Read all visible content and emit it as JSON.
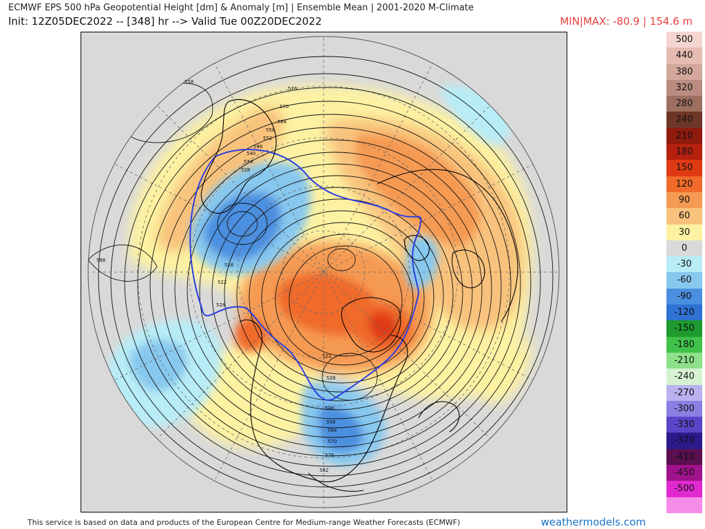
{
  "header": {
    "title": "ECMWF EPS 500 hPa Geopotential Height [dm] & Anomaly [m] | Ensemble Mean | 2001-2020 M-Climate",
    "init_valid": "Init: 12Z05DEC2022 -- [348] hr --> Valid Tue 00Z20DEC2022",
    "minmax": "MIN|MAX: -80.9 | 154.6 m"
  },
  "legend": {
    "entries": [
      {
        "label": "500",
        "color": "#f5d5d0"
      },
      {
        "label": "440",
        "color": "#e6bcb2"
      },
      {
        "label": "380",
        "color": "#d3a79c"
      },
      {
        "label": "320",
        "color": "#bb8c80"
      },
      {
        "label": "280",
        "color": "#9d6f61"
      },
      {
        "label": "240",
        "color": "#6e3626"
      },
      {
        "label": "210",
        "color": "#8f1a0d"
      },
      {
        "label": "180",
        "color": "#b5200f"
      },
      {
        "label": "150",
        "color": "#e03a14"
      },
      {
        "label": "120",
        "color": "#f06a2a"
      },
      {
        "label": "90",
        "color": "#f59a52"
      },
      {
        "label": "60",
        "color": "#f8c27c"
      },
      {
        "label": "30",
        "color": "#fdf2a2"
      },
      {
        "label": "0",
        "color": "#d9d9d9"
      },
      {
        "label": "-30",
        "color": "#b8ecf6"
      },
      {
        "label": "-60",
        "color": "#88c8ee"
      },
      {
        "label": "-90",
        "color": "#4b8fe0"
      },
      {
        "label": "-120",
        "color": "#2f72d4"
      },
      {
        "label": "-150",
        "color": "#1e9a2e"
      },
      {
        "label": "-180",
        "color": "#40c24a"
      },
      {
        "label": "-210",
        "color": "#8ee08a"
      },
      {
        "label": "-240",
        "color": "#d6f2d2"
      },
      {
        "label": "-270",
        "color": "#b9b2ef"
      },
      {
        "label": "-300",
        "color": "#8a7fe2"
      },
      {
        "label": "-330",
        "color": "#5a45c8"
      },
      {
        "label": "-370",
        "color": "#2b1a8a"
      },
      {
        "label": "-410",
        "color": "#5a0f50"
      },
      {
        "label": "-450",
        "color": "#a0128c"
      },
      {
        "label": "-500",
        "color": "#e02ad0"
      },
      {
        "label": "",
        "color": "#f58ce8"
      }
    ]
  },
  "contour_labels": [
    "558",
    "576",
    "570",
    "564",
    "558",
    "552",
    "546",
    "540",
    "534",
    "528",
    "516",
    "522",
    "528",
    "588",
    "522",
    "528",
    "546",
    "558",
    "564",
    "570",
    "576",
    "582"
  ],
  "footer": {
    "credit": "This service is based on data and products of the European Centre for Medium-range Weather Forecasts (ECMWF)",
    "brand": "weathermodels.com"
  }
}
